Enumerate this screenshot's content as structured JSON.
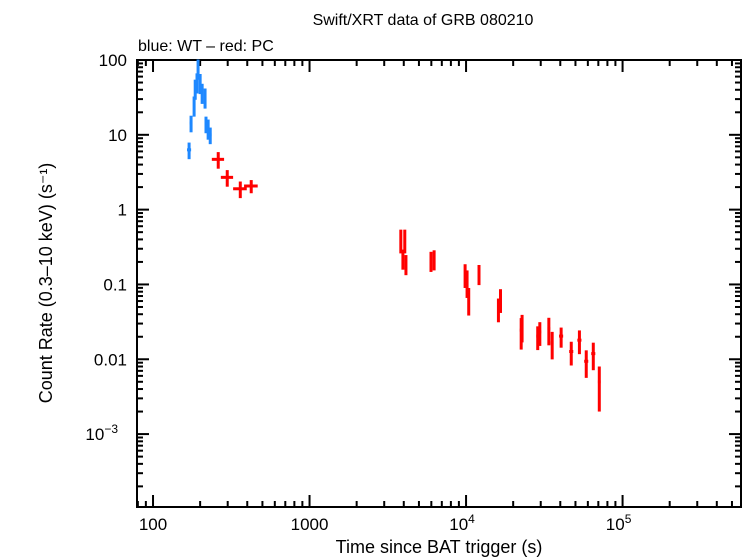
{
  "chart_data": {
    "type": "scatter",
    "title": "Swift/XRT data of GRB 080210",
    "subtitle": "blue: WT – red: PC",
    "xlabel": "Time since BAT trigger (s)",
    "ylabel": "Count Rate (0.3–10 keV) (s⁻¹)",
    "xscale": "log",
    "yscale": "log",
    "xlim": [
      79,
      571000
    ],
    "ylim": [
      0.000106,
      100
    ],
    "grid": false,
    "x_ticks": [
      {
        "value": 100,
        "label": "100"
      },
      {
        "value": 1000,
        "label": "1000"
      },
      {
        "value": 10000,
        "label": "10",
        "exp": "4"
      },
      {
        "value": 100000,
        "label": "10",
        "exp": "5"
      }
    ],
    "y_ticks": [
      {
        "value": 100,
        "label": "100"
      },
      {
        "value": 10,
        "label": "10"
      },
      {
        "value": 1,
        "label": "1"
      },
      {
        "value": 0.1,
        "label": "0.1"
      },
      {
        "value": 0.01,
        "label": "0.01"
      },
      {
        "value": 0.001,
        "label": "10",
        "exp": "−3"
      }
    ],
    "series": [
      {
        "mode": "WT",
        "color": "#1e88ff",
        "x": [
          170,
          175,
          183,
          186,
          191,
          194,
          200,
          206,
          215,
          218,
          225,
          232
        ],
        "y": [
          6.3,
          14.4,
          25,
          42,
          51,
          78,
          50,
          37,
          32,
          14,
          12.3,
          10
        ],
        "x_err_rel": [
          0.03,
          0.02,
          0.01,
          0.01,
          0.01,
          0.01,
          0.01,
          0.01,
          0.01,
          0.01,
          0.02,
          0.02
        ],
        "y_err_rel": [
          0.25,
          0.25,
          0.3,
          0.3,
          0.3,
          0.3,
          0.3,
          0.3,
          0.3,
          0.25,
          0.3,
          0.25
        ]
      },
      {
        "mode": "PC",
        "color": "#ff0000",
        "x": [
          261,
          298,
          361,
          424,
          3830,
          4060,
          3950,
          4130,
          5970,
          6250,
          9860,
          10150,
          10400,
          12100,
          16100,
          16600,
          22500,
          22800,
          28700,
          29600,
          33800,
          35500,
          40500,
          47000,
          53000,
          58600,
          65000,
          71000
        ],
        "y": [
          4.7,
          2.7,
          1.9,
          2.07,
          0.4,
          0.4,
          0.225,
          0.19,
          0.21,
          0.22,
          0.138,
          0.11,
          0.064,
          0.14,
          0.048,
          0.064,
          0.0245,
          0.028,
          0.0204,
          0.0232,
          0.0256,
          0.0166,
          0.0204,
          0.0127,
          0.018,
          0.0094,
          0.0119,
          0.005
        ],
        "x_err_rel": [
          0.09,
          0.09,
          0.1,
          0.1,
          0.01,
          0.01,
          0.01,
          0.01,
          0.01,
          0.01,
          0.01,
          0.01,
          0.01,
          0.01,
          0.01,
          0.01,
          0.02,
          0.02,
          0.02,
          0.02,
          0.02,
          0.02,
          0.03,
          0.03,
          0.03,
          0.03,
          0.03,
          0.02
        ],
        "y_err_rel": [
          0.25,
          0.25,
          0.25,
          0.2,
          0.35,
          0.35,
          0.3,
          0.3,
          0.3,
          0.3,
          0.35,
          0.4,
          0.4,
          0.3,
          0.35,
          0.35,
          0.45,
          0.4,
          0.35,
          0.35,
          0.4,
          0.4,
          0.3,
          0.35,
          0.35,
          0.4,
          0.4,
          0.6
        ]
      }
    ]
  }
}
